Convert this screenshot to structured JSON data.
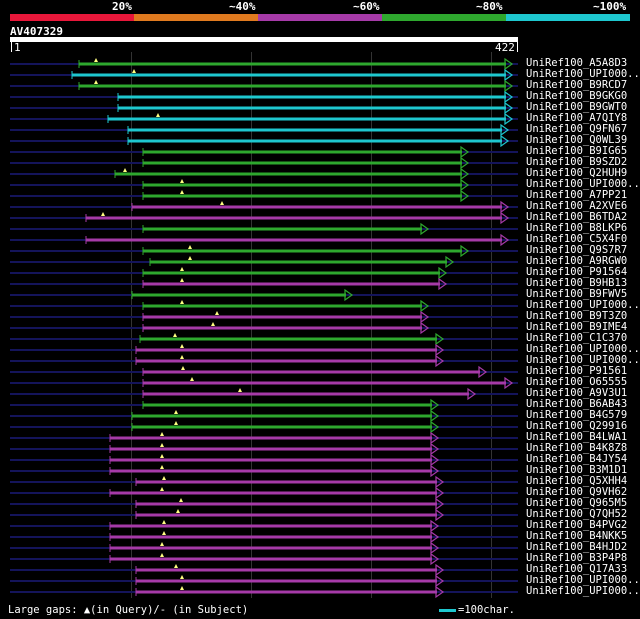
{
  "identity_scale": {
    "labels": [
      "20%",
      "~40%",
      "~60%",
      "~80%",
      "~100%"
    ],
    "colors": [
      "#e8173a",
      "#e07a1f",
      "#a63aa8",
      "#2ea82e",
      "#1ec7cf"
    ]
  },
  "query": {
    "id": "AV407329",
    "start": "1",
    "end": "422"
  },
  "colors": {
    "cyan": "#1ec7cf",
    "green": "#2ea82e",
    "magenta": "#a63aa8",
    "unaligned": "#14145a",
    "gap_marker": "#ffff80"
  },
  "hits": [
    {
      "name": "UniRef100_A5A8D3",
      "color": "green"
    },
    {
      "name": "UniRef100_UPI000..",
      "color": "cyan"
    },
    {
      "name": "UniRef100_B9RCD7",
      "color": "green"
    },
    {
      "name": "UniRef100_B9GKG0",
      "color": "cyan"
    },
    {
      "name": "UniRef100_B9GWT0",
      "color": "cyan"
    },
    {
      "name": "UniRef100_A7QIY8",
      "color": "cyan"
    },
    {
      "name": "UniRef100_Q9FN67",
      "color": "cyan"
    },
    {
      "name": "UniRef100_Q0WL39",
      "color": "cyan"
    },
    {
      "name": "UniRef100_B9IG65",
      "color": "green"
    },
    {
      "name": "UniRef100_B9SZD2",
      "color": "green"
    },
    {
      "name": "UniRef100_Q2HUH9",
      "color": "green"
    },
    {
      "name": "UniRef100_UPI000..",
      "color": "green"
    },
    {
      "name": "UniRef100_A7PP21",
      "color": "green"
    },
    {
      "name": "UniRef100_A2XVE6",
      "color": "magenta"
    },
    {
      "name": "UniRef100_B6TDA2",
      "color": "magenta"
    },
    {
      "name": "UniRef100_B8LKP6",
      "color": "green"
    },
    {
      "name": "UniRef100_C5X4F0",
      "color": "magenta"
    },
    {
      "name": "UniRef100_Q9S7R7",
      "color": "green"
    },
    {
      "name": "UniRef100_A9RGW0",
      "color": "green"
    },
    {
      "name": "UniRef100_P91564",
      "color": "green"
    },
    {
      "name": "UniRef100_B9HB13",
      "color": "magenta"
    },
    {
      "name": "UniRef100_B9FWV5",
      "color": "green"
    },
    {
      "name": "UniRef100_UPI000..",
      "color": "green"
    },
    {
      "name": "UniRef100_B9T3Z0",
      "color": "magenta"
    },
    {
      "name": "UniRef100_B9IME4",
      "color": "magenta"
    },
    {
      "name": "UniRef100_C1C370",
      "color": "green"
    },
    {
      "name": "UniRef100_UPI000..",
      "color": "magenta"
    },
    {
      "name": "UniRef100_UPI000..",
      "color": "magenta"
    },
    {
      "name": "UniRef100_P91561",
      "color": "magenta"
    },
    {
      "name": "UniRef100_O65555",
      "color": "magenta"
    },
    {
      "name": "UniRef100_A9V3U1",
      "color": "magenta"
    },
    {
      "name": "UniRef100_B6AB43",
      "color": "green"
    },
    {
      "name": "UniRef100_B4G579",
      "color": "green"
    },
    {
      "name": "UniRef100_Q29916",
      "color": "green"
    },
    {
      "name": "UniRef100_B4LWA1",
      "color": "magenta"
    },
    {
      "name": "UniRef100_B4K8Z8",
      "color": "magenta"
    },
    {
      "name": "UniRef100_B4JY54",
      "color": "magenta"
    },
    {
      "name": "UniRef100_B3M1D1",
      "color": "magenta"
    },
    {
      "name": "UniRef100_Q5XHH4",
      "color": "magenta"
    },
    {
      "name": "UniRef100_Q9VH62",
      "color": "magenta"
    },
    {
      "name": "UniRef100_Q965M5",
      "color": "magenta"
    },
    {
      "name": "UniRef100_Q7QH52",
      "color": "magenta"
    },
    {
      "name": "UniRef100_B4PVG2",
      "color": "magenta"
    },
    {
      "name": "UniRef100_B4NKK5",
      "color": "magenta"
    },
    {
      "name": "UniRef100_B4HJD2",
      "color": "magenta"
    },
    {
      "name": "UniRef100_B3P4P8",
      "color": "magenta"
    },
    {
      "name": "UniRef100_Q17A33",
      "color": "magenta"
    },
    {
      "name": "UniRef100_UPI000..",
      "color": "magenta"
    },
    {
      "name": "UniRef100_UPI000..",
      "color": "magenta"
    }
  ],
  "footer": {
    "gaps_text": "Large gaps: ▲(in Query)/- (in Subject)",
    "legend_text": "=100char."
  }
}
